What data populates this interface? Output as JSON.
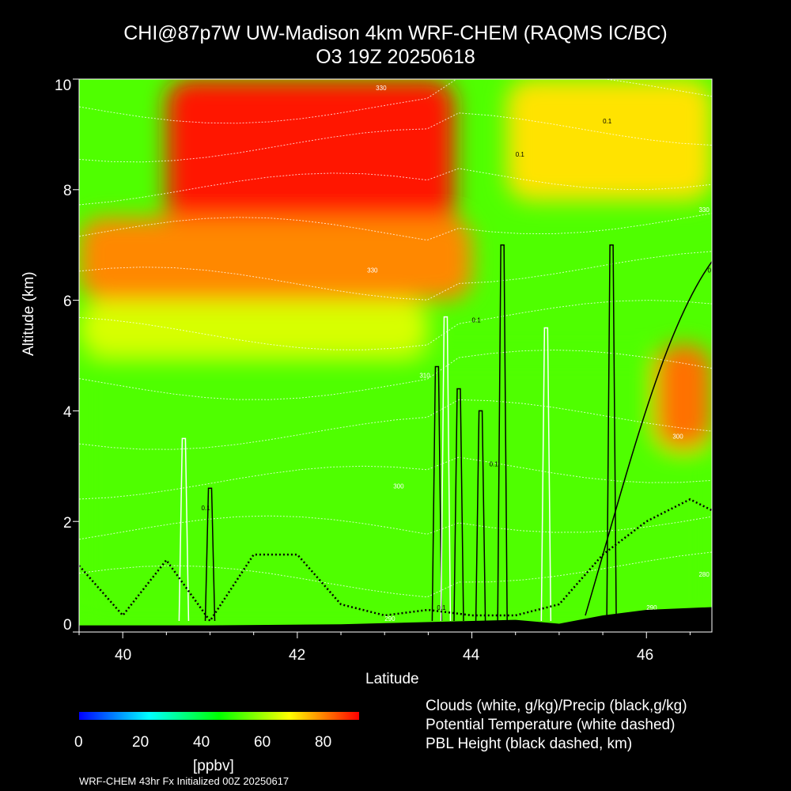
{
  "title_line1": "CHI@87p7W UW-Madison 4km WRF-CHEM (RAQMS IC/BC)",
  "title_line2": "O3 19Z 20250618",
  "chart_data": {
    "type": "heatmap",
    "variable": "O3",
    "xlabel": "Latitude",
    "ylabel": "Altitude (km)",
    "xlim": [
      39.5,
      46.75
    ],
    "ylim": [
      0,
      10
    ],
    "xticks": [
      40,
      42,
      44,
      46
    ],
    "yticks": [
      0,
      2,
      4,
      6,
      8,
      10
    ],
    "colorbar": {
      "range": [
        0,
        90
      ],
      "ticks": [
        0,
        20,
        40,
        60,
        80
      ],
      "unit": "[ppbv]",
      "colors": [
        "#0000ff",
        "#00ffff",
        "#00ff00",
        "#ffff00",
        "#ff0000"
      ]
    },
    "surface_height_km": [
      [
        39.5,
        0.12
      ],
      [
        41.0,
        0.12
      ],
      [
        42.5,
        0.14
      ],
      [
        43.0,
        0.16
      ],
      [
        44.0,
        0.2
      ],
      [
        44.5,
        0.22
      ],
      [
        45.0,
        0.15
      ],
      [
        45.5,
        0.3
      ],
      [
        46.0,
        0.4
      ],
      [
        46.75,
        0.45
      ]
    ],
    "ozone_zones_ppbv": [
      {
        "lat": [
          40.5,
          43.8
        ],
        "alt": [
          7.0,
          10.0
        ],
        "value": 88
      },
      {
        "lat": [
          39.5,
          44.0
        ],
        "alt": [
          6.0,
          7.5
        ],
        "value": 78
      },
      {
        "lat": [
          39.5,
          43.5
        ],
        "alt": [
          5.0,
          6.0
        ],
        "value": 64
      },
      {
        "lat": [
          39.5,
          46.75
        ],
        "alt": [
          0,
          5.0
        ],
        "value": 52
      },
      {
        "lat": [
          46.1,
          46.75
        ],
        "alt": [
          3.3,
          5.2
        ],
        "value": 80
      },
      {
        "lat": [
          44.4,
          46.75
        ],
        "alt": [
          7.8,
          10.0
        ],
        "value": 70
      }
    ],
    "contour_labels": [
      {
        "text": "330",
        "lat": 42.9,
        "alt": 9.8
      },
      {
        "text": "330",
        "lat": 44.7,
        "alt": 10.0
      },
      {
        "text": "330",
        "lat": 42.8,
        "alt": 6.5
      },
      {
        "text": "330",
        "lat": 46.6,
        "alt": 7.6
      },
      {
        "text": "310",
        "lat": 43.4,
        "alt": 4.6
      },
      {
        "text": "300",
        "lat": 43.1,
        "alt": 2.6
      },
      {
        "text": "300",
        "lat": 46.3,
        "alt": 3.5
      },
      {
        "text": "280",
        "lat": 46.6,
        "alt": 1.0
      },
      {
        "text": "290",
        "lat": 46.0,
        "alt": 0.4
      },
      {
        "text": "290",
        "lat": 43.0,
        "alt": 0.2
      },
      {
        "text": "0.1",
        "lat": 45.5,
        "alt": 9.2
      },
      {
        "text": "0.1",
        "lat": 44.5,
        "alt": 8.6
      },
      {
        "text": "0.1",
        "lat": 44.0,
        "alt": 5.6
      },
      {
        "text": "0.1",
        "lat": 44.2,
        "alt": 3.0
      },
      {
        "text": "0.1",
        "lat": 46.7,
        "alt": 6.5
      },
      {
        "text": "0.1",
        "lat": 43.6,
        "alt": 0.4
      },
      {
        "text": "0.1",
        "lat": 40.9,
        "alt": 2.2
      }
    ]
  },
  "legend": {
    "clouds": "Clouds (white, g/kg)/Precip (black,g/kg)",
    "theta": "Potential Temperature (white dashed)",
    "pbl": "PBL Height (black dashed, km)"
  },
  "footer": "WRF-CHEM 43hr  Fx Initialized 00Z 20250617"
}
